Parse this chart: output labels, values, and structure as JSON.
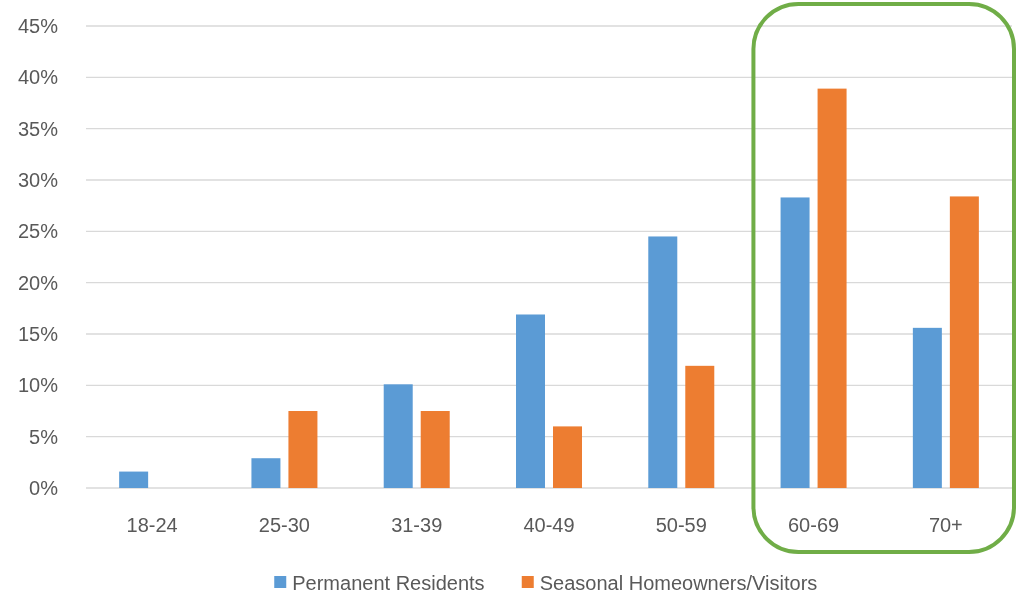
{
  "chart_data": {
    "type": "bar",
    "categories": [
      "18-24",
      "25-30",
      "31-39",
      "40-49",
      "50-59",
      "60-69",
      "70+"
    ],
    "series": [
      {
        "name": "Permanent Residents",
        "color": "#5b9bd5",
        "values": [
          1.6,
          2.9,
          10.1,
          16.9,
          24.5,
          28.3,
          15.6
        ]
      },
      {
        "name": "Seasonal Homeowners/Visitors",
        "color": "#ed7d31",
        "values": [
          null,
          7.5,
          7.5,
          6.0,
          11.9,
          38.9,
          28.4
        ]
      }
    ],
    "ylim": [
      0,
      45
    ],
    "yticks": [
      {
        "value": 0,
        "label": "0%"
      },
      {
        "value": 5,
        "label": "5%"
      },
      {
        "value": 10,
        "label": "10%"
      },
      {
        "value": 15,
        "label": "15%"
      },
      {
        "value": 20,
        "label": "20%"
      },
      {
        "value": 25,
        "label": "25%"
      },
      {
        "value": 30,
        "label": "30%"
      },
      {
        "value": 35,
        "label": "35%"
      },
      {
        "value": 40,
        "label": "40%"
      },
      {
        "value": 45,
        "label": "45%"
      }
    ],
    "grid": "y",
    "legend": "bottom"
  }
}
